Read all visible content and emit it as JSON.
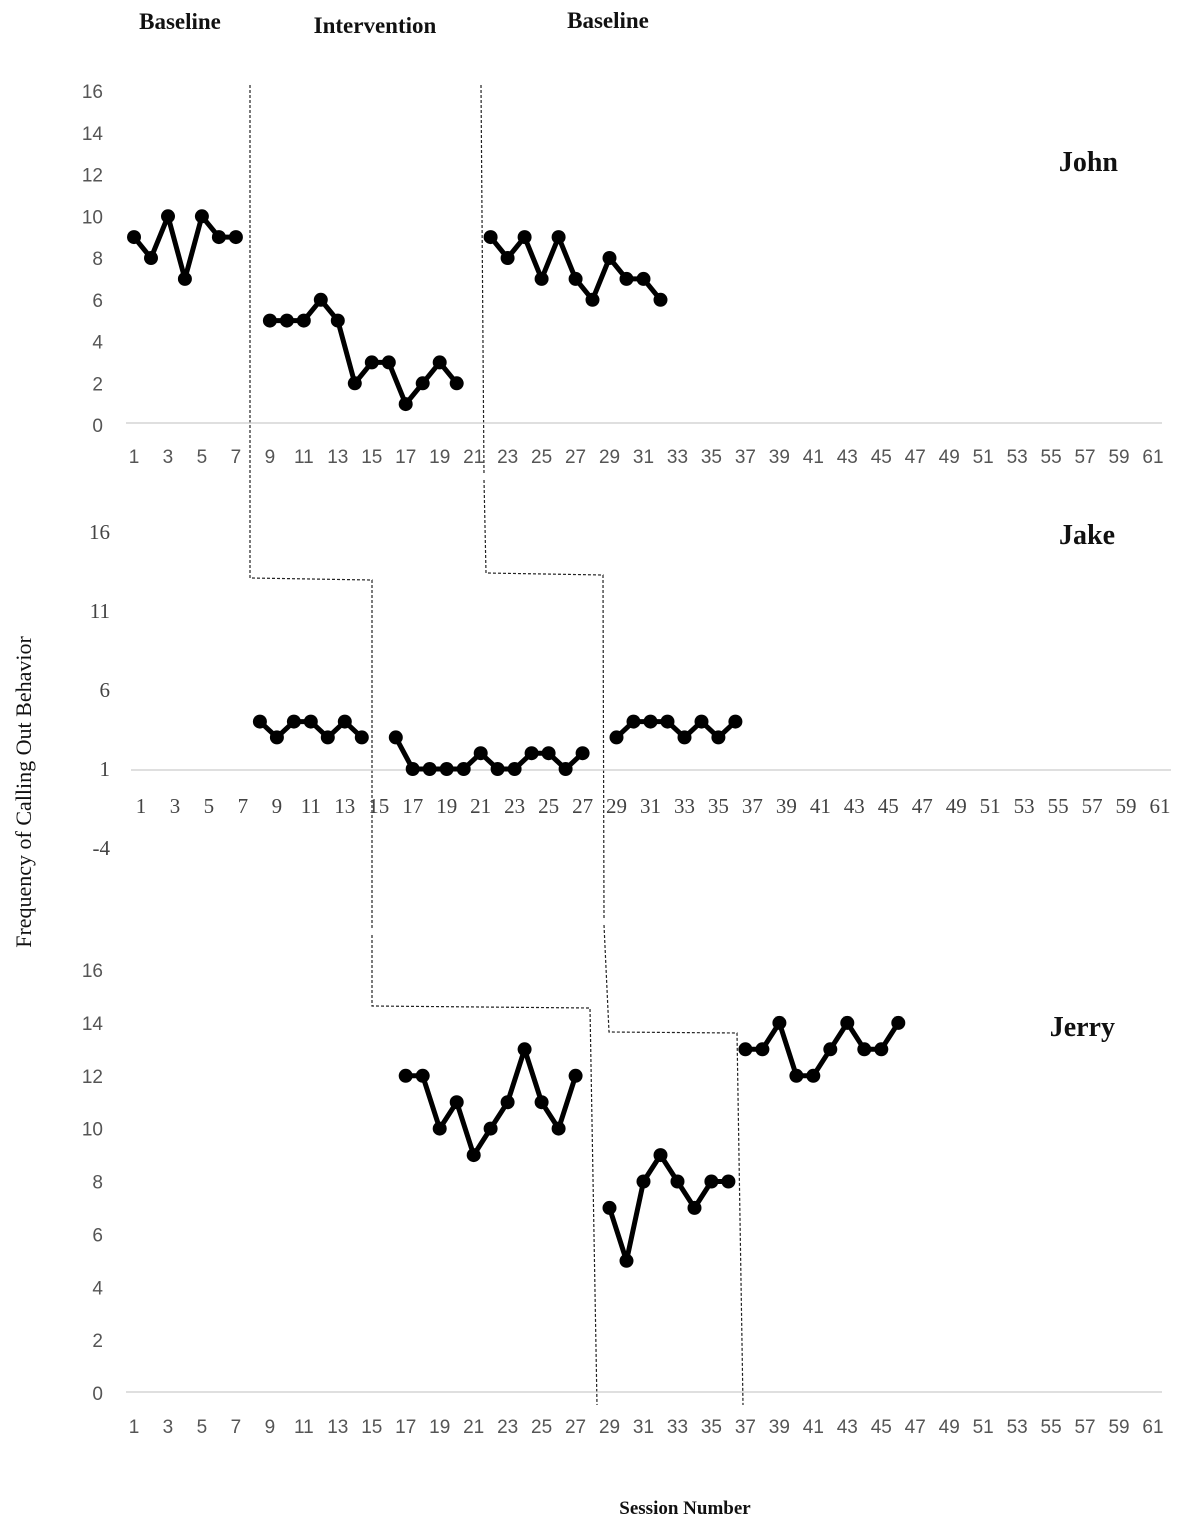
{
  "header": {
    "phase_labels": [
      "Baseline",
      "Intervention",
      "Baseline"
    ]
  },
  "axis": {
    "ylabel": "Frequency of Calling Out Behavior",
    "xlabel": "Session Number"
  },
  "chart_data": [
    {
      "type": "line",
      "title": "John",
      "x_ticks": [
        1,
        3,
        5,
        7,
        9,
        11,
        13,
        15,
        17,
        19,
        21,
        23,
        25,
        27,
        29,
        31,
        33,
        35,
        37,
        39,
        41,
        43,
        45,
        47,
        49,
        51,
        53,
        55,
        57,
        59,
        61
      ],
      "y_ticks": [
        0,
        2,
        4,
        6,
        8,
        10,
        12,
        14,
        16
      ],
      "ylim": [
        0,
        16
      ],
      "xlim": [
        1,
        61
      ],
      "grid": false,
      "series": [
        {
          "x": [
            1,
            2,
            3,
            4,
            5,
            6,
            7
          ],
          "values": [
            9,
            8,
            10,
            7,
            10,
            9,
            9
          ]
        },
        {
          "x": [
            9,
            10,
            11,
            12,
            13,
            14,
            15,
            16,
            17,
            18,
            19,
            20
          ],
          "values": [
            5,
            5,
            5,
            6,
            5,
            2,
            3,
            3,
            1,
            2,
            3,
            2
          ]
        },
        {
          "x": [
            22,
            23,
            24,
            25,
            26,
            27,
            28,
            29,
            30,
            31,
            32
          ],
          "values": [
            9,
            8,
            9,
            7,
            9,
            7,
            6,
            8,
            7,
            7,
            6
          ]
        }
      ]
    },
    {
      "type": "line",
      "title": "Jake",
      "x_ticks": [
        1,
        3,
        5,
        7,
        9,
        11,
        13,
        15,
        17,
        19,
        21,
        23,
        25,
        27,
        29,
        31,
        33,
        35,
        37,
        39,
        41,
        43,
        45,
        47,
        49,
        51,
        53,
        55,
        57,
        59,
        61
      ],
      "y_ticks": [
        -4,
        1,
        6,
        11,
        16
      ],
      "ylim": [
        -4,
        16
      ],
      "xlim": [
        1,
        61
      ],
      "grid": false,
      "series": [
        {
          "x": [
            8,
            9,
            10,
            11,
            12,
            13,
            14
          ],
          "values": [
            4,
            3,
            4,
            4,
            3,
            4,
            3
          ]
        },
        {
          "x": [
            16,
            17,
            18,
            19,
            20,
            21,
            22,
            23,
            24,
            25,
            26,
            27
          ],
          "values": [
            3,
            1,
            1,
            1,
            1,
            2,
            1,
            1,
            2,
            2,
            1,
            2
          ]
        },
        {
          "x": [
            29,
            30,
            31,
            32,
            33,
            34,
            35,
            36
          ],
          "values": [
            3,
            4,
            4,
            4,
            3,
            4,
            3,
            4
          ]
        }
      ]
    },
    {
      "type": "line",
      "title": "Jerry",
      "x_ticks": [
        1,
        3,
        5,
        7,
        9,
        11,
        13,
        15,
        17,
        19,
        21,
        23,
        25,
        27,
        29,
        31,
        33,
        35,
        37,
        39,
        41,
        43,
        45,
        47,
        49,
        51,
        53,
        55,
        57,
        59,
        61
      ],
      "y_ticks": [
        0,
        2,
        4,
        6,
        8,
        10,
        12,
        14,
        16
      ],
      "ylim": [
        0,
        16
      ],
      "xlim": [
        1,
        61
      ],
      "grid": false,
      "series": [
        {
          "x": [
            17,
            18,
            19,
            20,
            21,
            22,
            23,
            24,
            25,
            26,
            27
          ],
          "values": [
            12,
            12,
            10,
            11,
            9,
            10,
            11,
            13,
            11,
            10,
            12
          ]
        },
        {
          "x": [
            29,
            30,
            31,
            32,
            33,
            34,
            35,
            36
          ],
          "values": [
            7,
            5,
            8,
            9,
            8,
            7,
            8,
            8
          ]
        },
        {
          "x": [
            37,
            38,
            39,
            40,
            41,
            42,
            43,
            44,
            45,
            46
          ],
          "values": [
            13,
            13,
            14,
            12,
            12,
            13,
            14,
            13,
            13,
            14
          ]
        }
      ]
    }
  ]
}
